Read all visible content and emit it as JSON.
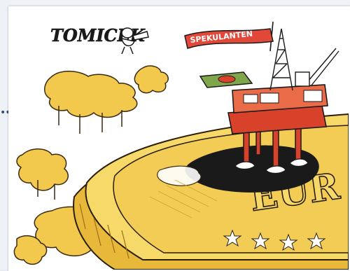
{
  "cartoon": {
    "signature": "TOMICEK",
    "flag_text": "SPEKULANTEN",
    "coin_text": "EUR",
    "colors": {
      "gold_light": "#f7d96a",
      "gold_mid": "#e8b83a",
      "gold_dark": "#b9861e",
      "oil_black": "#1a1a1a",
      "platform_red": "#d8422a",
      "flag_red": "#e2483a",
      "helipad_green": "#7fa64a",
      "sky": "#ffffff"
    }
  }
}
